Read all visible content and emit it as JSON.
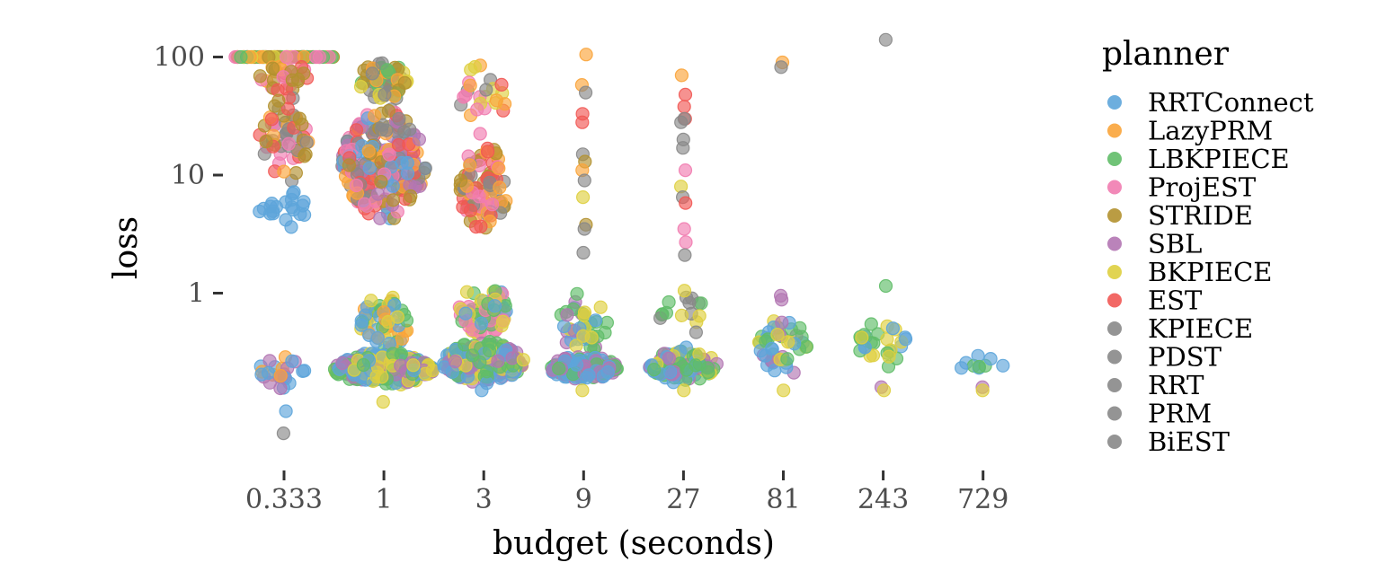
{
  "chart_data": {
    "type": "scatter",
    "subtype": "beeswarm",
    "xlabel": "budget (seconds)",
    "ylabel": "loss",
    "x_categories": [
      "0.333",
      "1",
      "3",
      "9",
      "27",
      "81",
      "243",
      "729"
    ],
    "y_scale": "log",
    "y_ticks": [
      1,
      10,
      100
    ],
    "y_tick_labels": [
      "1",
      "10",
      "100"
    ],
    "ylim": [
      0.06,
      180
    ],
    "grid": false,
    "legend": {
      "title": "planner",
      "placement": "right",
      "entries": [
        {
          "name": "RRTConnect",
          "color": "#5DA5DA"
        },
        {
          "name": "LazyPRM",
          "color": "#FAA43A"
        },
        {
          "name": "LBKPIECE",
          "color": "#60BD68"
        },
        {
          "name": "ProjEST",
          "color": "#F17CB0"
        },
        {
          "name": "STRIDE",
          "color": "#B2912F"
        },
        {
          "name": "SBL",
          "color": "#B276B2"
        },
        {
          "name": "BKPIECE",
          "color": "#DECF3F"
        },
        {
          "name": "EST",
          "color": "#F15854"
        },
        {
          "name": "KPIECE",
          "color": "#888888"
        },
        {
          "name": "PDST",
          "color": "#888888"
        },
        {
          "name": "RRT",
          "color": "#888888"
        },
        {
          "name": "PRM",
          "color": "#888888"
        },
        {
          "name": "BiEST",
          "color": "#888888"
        }
      ]
    },
    "groups": [
      {
        "x": "0.333",
        "clusters": [
          {
            "y": 100,
            "n": 90,
            "planners": [
              "LazyPRM",
              "LBKPIECE",
              "STRIDE",
              "ProjEST",
              "BKPIECE"
            ],
            "width": "wide-flat"
          },
          {
            "y_range": [
              50,
              95
            ],
            "n": 30,
            "planners": [
              "LazyPRM",
              "STRIDE",
              "EST",
              "ProjEST"
            ]
          },
          {
            "y_range": [
              8,
              50
            ],
            "n": 60,
            "planners": [
              "KPIECE",
              "EST",
              "ProjEST",
              "STRIDE",
              "LazyPRM"
            ]
          },
          {
            "y_range": [
              3.3,
              8
            ],
            "n": 20,
            "planners": [
              "RRTConnect"
            ]
          },
          {
            "y_range": [
              0.15,
              0.35
            ],
            "n": 25,
            "planners": [
              "RRTConnect",
              "LazyPRM",
              "SBL"
            ]
          }
        ],
        "outliers": [
          {
            "planner": "RRTConnect",
            "y": 0.1
          },
          {
            "planner": "KPIECE",
            "y": 0.065
          },
          {
            "planner": "ProjEST",
            "y": 100
          }
        ]
      },
      {
        "x": "1",
        "clusters": [
          {
            "y_range": [
              40,
              100
            ],
            "n": 60,
            "planners": [
              "KPIECE",
              "LazyPRM",
              "STRIDE",
              "LBKPIECE",
              "BKPIECE"
            ]
          },
          {
            "y_range": [
              4,
              40
            ],
            "n": 260,
            "planners": [
              "EST",
              "ProjEST",
              "STRIDE",
              "KPIECE",
              "SBL",
              "RRTConnect",
              "LazyPRM"
            ],
            "width": "wide"
          },
          {
            "y_range": [
              0.3,
              1.0
            ],
            "n": 60,
            "planners": [
              "LazyPRM",
              "BKPIECE",
              "LBKPIECE",
              "RRTConnect"
            ]
          },
          {
            "y_range": [
              0.16,
              0.32
            ],
            "n": 320,
            "planners": [
              "RRTConnect",
              "SBL",
              "LBKPIECE",
              "BKPIECE"
            ],
            "width": "widest"
          }
        ],
        "outliers": [
          {
            "planner": "BKPIECE",
            "y": 0.12
          }
        ]
      },
      {
        "x": "3",
        "clusters": [
          {
            "y_range": [
              20,
              100
            ],
            "n": 25,
            "planners": [
              "LazyPRM",
              "KPIECE",
              "BKPIECE",
              "EST",
              "ProjEST"
            ]
          },
          {
            "y_range": [
              3,
              20
            ],
            "n": 90,
            "planners": [
              "STRIDE",
              "KPIECE",
              "ProjEST",
              "EST",
              "LazyPRM"
            ]
          },
          {
            "y_range": [
              0.4,
              1.3
            ],
            "n": 70,
            "planners": [
              "BKPIECE",
              "LBKPIECE",
              "ProjEST",
              "RRTConnect"
            ]
          },
          {
            "y_range": [
              0.17,
              0.4
            ],
            "n": 260,
            "planners": [
              "RRTConnect",
              "LBKPIECE",
              "SBL",
              "BKPIECE"
            ],
            "width": "wide"
          }
        ],
        "outliers": [
          {
            "planner": "RRTConnect",
            "y": 0.15
          }
        ]
      },
      {
        "x": "9",
        "clusters": [
          {
            "y_range": [
              0.3,
              1.0
            ],
            "n": 40,
            "planners": [
              "BKPIECE",
              "LBKPIECE",
              "RRTConnect",
              "SBL"
            ]
          },
          {
            "y_range": [
              0.18,
              0.3
            ],
            "n": 140,
            "planners": [
              "RRTConnect",
              "LBKPIECE",
              "SBL"
            ],
            "width": "medium"
          }
        ],
        "outliers": [
          {
            "planner": "LazyPRM",
            "y": 105
          },
          {
            "planner": "LazyPRM",
            "y": 58
          },
          {
            "planner": "KPIECE",
            "y": 50
          },
          {
            "planner": "EST",
            "y": 33
          },
          {
            "planner": "EST",
            "y": 28
          },
          {
            "planner": "KPIECE",
            "y": 15
          },
          {
            "planner": "STRIDE",
            "y": 13
          },
          {
            "planner": "LazyPRM",
            "y": 11
          },
          {
            "planner": "KPIECE",
            "y": 9
          },
          {
            "planner": "BKPIECE",
            "y": 6.5
          },
          {
            "planner": "STRIDE",
            "y": 3.8
          },
          {
            "planner": "KPIECE",
            "y": 3.5
          },
          {
            "planner": "KPIECE",
            "y": 2.2
          },
          {
            "planner": "BKPIECE",
            "y": 0.15
          }
        ]
      },
      {
        "x": "27",
        "clusters": [
          {
            "y_range": [
              0.4,
              1.0
            ],
            "n": 15,
            "planners": [
              "BKPIECE",
              "LBKPIECE",
              "KPIECE"
            ]
          },
          {
            "y_range": [
              0.17,
              0.35
            ],
            "n": 110,
            "planners": [
              "RRTConnect",
              "LBKPIECE",
              "SBL",
              "BKPIECE"
            ],
            "width": "medium"
          }
        ],
        "outliers": [
          {
            "planner": "LazyPRM",
            "y": 70
          },
          {
            "planner": "EST",
            "y": 48
          },
          {
            "planner": "EST",
            "y": 38
          },
          {
            "planner": "EST",
            "y": 30
          },
          {
            "planner": "KPIECE",
            "y": 30
          },
          {
            "planner": "KPIECE",
            "y": 28
          },
          {
            "planner": "KPIECE",
            "y": 20
          },
          {
            "planner": "KPIECE",
            "y": 17
          },
          {
            "planner": "ProjEST",
            "y": 11
          },
          {
            "planner": "BKPIECE",
            "y": 8
          },
          {
            "planner": "KPIECE",
            "y": 6.5
          },
          {
            "planner": "EST",
            "y": 5.8
          },
          {
            "planner": "ProjEST",
            "y": 3.5
          },
          {
            "planner": "ProjEST",
            "y": 2.7
          },
          {
            "planner": "KPIECE",
            "y": 2.1
          },
          {
            "planner": "BKPIECE",
            "y": 1.05
          },
          {
            "planner": "BKPIECE",
            "y": 0.15
          }
        ]
      },
      {
        "x": "81",
        "clusters": [
          {
            "y_range": [
              0.18,
              0.7
            ],
            "n": 45,
            "planners": [
              "LBKPIECE",
              "RRTConnect",
              "SBL",
              "BKPIECE"
            ]
          }
        ],
        "outliers": [
          {
            "planner": "LazyPRM",
            "y": 90
          },
          {
            "planner": "KPIECE",
            "y": 82
          },
          {
            "planner": "SBL",
            "y": 0.95
          },
          {
            "planner": "SBL",
            "y": 0.88
          },
          {
            "planner": "BKPIECE",
            "y": 0.15
          }
        ]
      },
      {
        "x": "243",
        "clusters": [
          {
            "y_range": [
              0.2,
              0.7
            ],
            "n": 28,
            "planners": [
              "LBKPIECE",
              "RRTConnect",
              "BKPIECE"
            ]
          }
        ],
        "outliers": [
          {
            "planner": "KPIECE",
            "y": 140
          },
          {
            "planner": "LBKPIECE",
            "y": 1.15
          },
          {
            "planner": "SBL",
            "y": 0.16
          },
          {
            "planner": "BKPIECE",
            "y": 0.15
          }
        ]
      },
      {
        "x": "729",
        "clusters": [
          {
            "y_range": [
              0.2,
              0.3
            ],
            "n": 9,
            "planners": [
              "LBKPIECE",
              "RRTConnect"
            ]
          }
        ],
        "outliers": [
          {
            "planner": "SBL",
            "y": 0.16
          },
          {
            "planner": "BKPIECE",
            "y": 0.15
          }
        ]
      }
    ]
  }
}
